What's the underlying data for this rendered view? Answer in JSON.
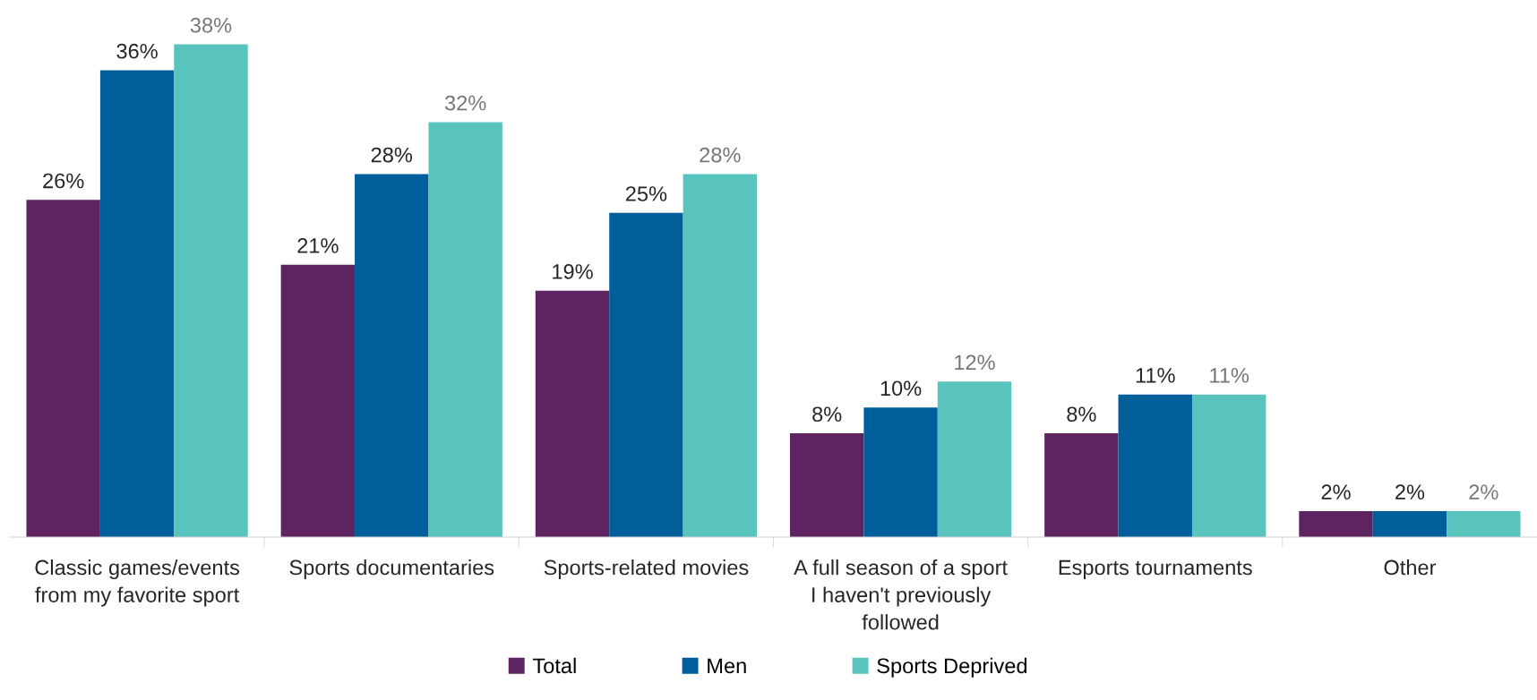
{
  "chart_data": {
    "type": "bar",
    "categories": [
      "Classic games/events\nfrom my favorite sport",
      "Sports documentaries",
      "Sports-related movies",
      "A full season of a sport\nI haven't previously\nfollowed",
      "Esports tournaments",
      "Other"
    ],
    "series": [
      {
        "name": "Total",
        "color": "#5e2461",
        "values": [
          26,
          21,
          19,
          8,
          8,
          2
        ],
        "value_labels": [
          "26%",
          "21%",
          "19%",
          "8%",
          "8%",
          "2%"
        ]
      },
      {
        "name": "Men",
        "color": "#005f9a",
        "values": [
          36,
          28,
          25,
          10,
          11,
          2
        ],
        "value_labels": [
          "36%",
          "28%",
          "25%",
          "10%",
          "11%",
          "2%"
        ]
      },
      {
        "name": "Sports Deprived",
        "color": "#59c3bd",
        "values": [
          38,
          32,
          28,
          12,
          11,
          2
        ],
        "value_labels": [
          "38%",
          "32%",
          "28%",
          "12%",
          "11%",
          "2%"
        ]
      }
    ],
    "legend": "bottom",
    "grid": false
  }
}
